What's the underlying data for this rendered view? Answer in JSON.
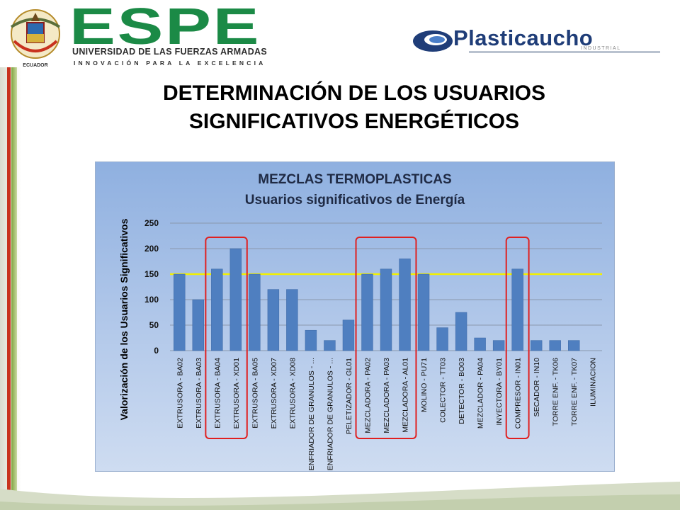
{
  "header": {
    "espe_word": "ESPE",
    "espe_line1": "UNIVERSIDAD DE LAS FUERZAS ARMADAS",
    "espe_line2": "INNOVACIÓN PARA LA EXCELENCIA",
    "crest_label": "ECUADOR",
    "partner_name": "Plasticaucho",
    "partner_sub": "INDUSTRIAL"
  },
  "slide": {
    "title_line1": "DETERMINACIÓN DE LOS USUARIOS",
    "title_line2": "SIGNIFICATIVOS ENERGÉTICOS"
  },
  "colors": {
    "brand_green": "#1b8a46",
    "partner_blue": "#1f3d78",
    "bar": "#4f7fc0",
    "threshold": "#f2f000",
    "highlight": "#e02020",
    "chart_title": "#1f2a44"
  },
  "chart_data": {
    "type": "bar",
    "title": "MEZCLAS TERMOPLASTICAS",
    "subtitle": "Usuarios significativos de Energía",
    "xlabel": "",
    "ylabel": "Valorización de los Usuarios Significativos",
    "ylim": [
      0,
      250
    ],
    "yticks": [
      0,
      50,
      100,
      150,
      200,
      250
    ],
    "grid": true,
    "threshold": 150,
    "categories": [
      "EXTRUSORA - BA02",
      "EXTRUSORA - BA03",
      "EXTRUSORA - BA04",
      "EXTRUSORA - XD01",
      "EXTRUSORA - BA05",
      "EXTRUSORA - XD07",
      "EXTRUSORA - XD08",
      "ENFRIADOR DE GRANULOS - ...",
      "ENFRIADOR DE GRANULOS - ...",
      "PELETIZADOR - GL01",
      "MEZCLADORA - PA02",
      "MEZCLADORA - PA03",
      "MEZCLADORA - AL01",
      "MOLINO - PU71",
      "COLECTOR - TT03",
      "DETECTOR - BO03",
      "MEZCLADOR - PA04",
      "INYECTORA - BY01",
      "COMPRESOR - IN01",
      "SECADOR - IN10",
      "TORRE ENF. - TK06",
      "TORRE ENF. - TK07",
      "ILUMINACION"
    ],
    "values": [
      150,
      100,
      160,
      200,
      150,
      120,
      120,
      40,
      20,
      60,
      150,
      160,
      180,
      150,
      45,
      75,
      25,
      20,
      160,
      20,
      20,
      20,
      0
    ],
    "highlight_groups": [
      [
        2,
        3
      ],
      [
        10,
        12
      ],
      [
        18,
        18
      ]
    ]
  }
}
